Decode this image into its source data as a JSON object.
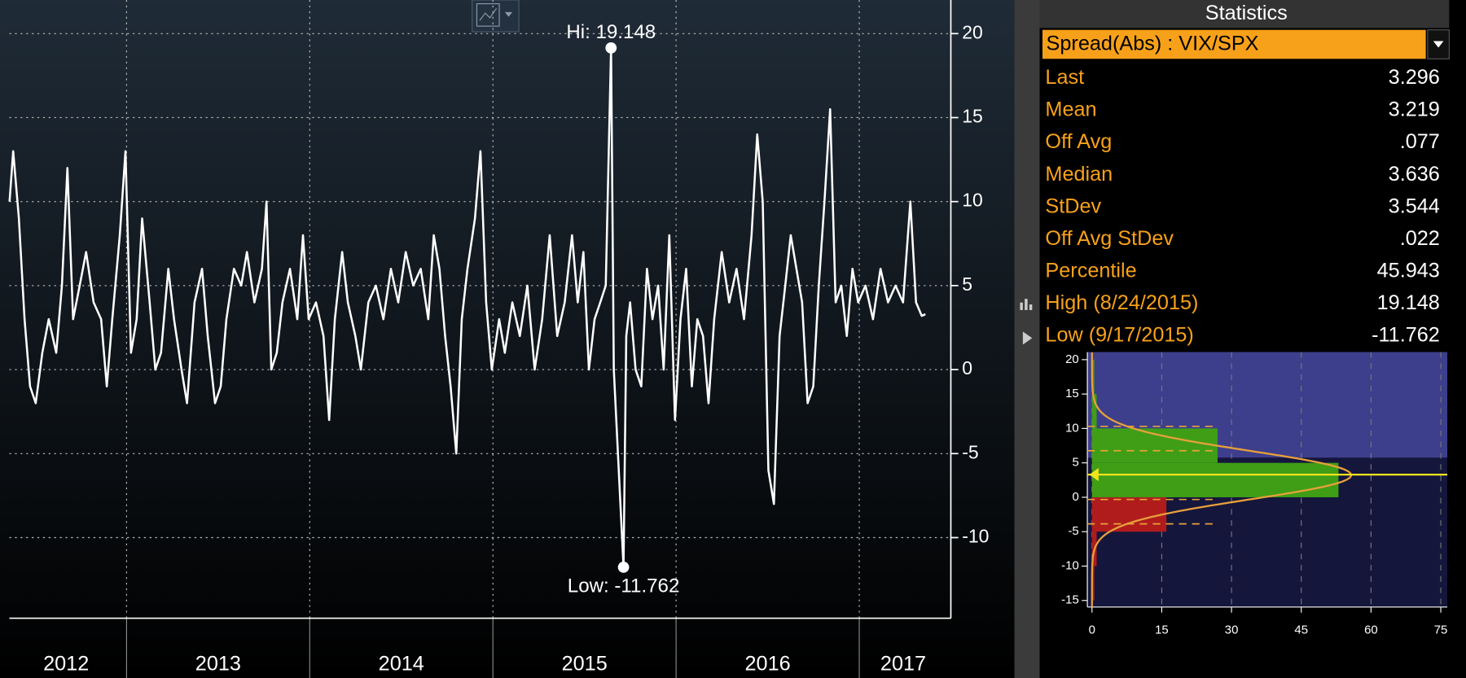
{
  "chart_data": [
    {
      "type": "line",
      "color": "#ffffff",
      "x": [
        2012.361,
        2012.381,
        2012.412,
        2012.443,
        2012.473,
        2012.504,
        2012.54,
        2012.575,
        2012.616,
        2012.647,
        2012.677,
        2012.708,
        2012.744,
        2012.779,
        2012.82,
        2012.861,
        2012.892,
        2012.922,
        2012.963,
        2012.994,
        2013.024,
        2013.055,
        2013.085,
        2013.126,
        2013.157,
        2013.188,
        2013.228,
        2013.259,
        2013.3,
        2013.33,
        2013.371,
        2013.412,
        2013.443,
        2013.483,
        2013.514,
        2013.545,
        2013.586,
        2013.626,
        2013.657,
        2013.698,
        2013.739,
        2013.764,
        2013.79,
        2013.82,
        2013.851,
        2013.892,
        2013.932,
        2013.963,
        2013.994,
        2014.034,
        2014.075,
        2014.106,
        2014.137,
        2014.177,
        2014.208,
        2014.249,
        2014.279,
        2014.32,
        2014.361,
        2014.402,
        2014.443,
        2014.483,
        2014.524,
        2014.565,
        2014.606,
        2014.647,
        2014.677,
        2014.708,
        2014.739,
        2014.769,
        2014.8,
        2014.83,
        2014.861,
        2014.902,
        2014.932,
        2014.963,
        2014.994,
        2015.034,
        2015.065,
        2015.106,
        2015.147,
        2015.188,
        2015.228,
        2015.269,
        2015.31,
        2015.351,
        2015.392,
        2015.432,
        2015.463,
        2015.494,
        2015.524,
        2015.555,
        2015.586,
        2015.616,
        2015.645,
        2015.66,
        2015.713,
        2015.728,
        2015.749,
        2015.779,
        2015.81,
        2015.841,
        2015.871,
        2015.902,
        2015.932,
        2015.963,
        2015.994,
        2016.024,
        2016.055,
        2016.086,
        2016.116,
        2016.147,
        2016.177,
        2016.208,
        2016.249,
        2016.29,
        2016.33,
        2016.371,
        2016.412,
        2016.443,
        2016.473,
        2016.504,
        2016.534,
        2016.565,
        2016.596,
        2016.626,
        2016.657,
        2016.688,
        2016.718,
        2016.749,
        2016.779,
        2016.81,
        2016.841,
        2016.871,
        2016.902,
        2016.932,
        2016.963,
        2016.994,
        2017.034,
        2017.075,
        2017.116,
        2017.157,
        2017.198,
        2017.239,
        2017.279,
        2017.31,
        2017.341,
        2017.361
      ],
      "values": [
        10,
        13,
        9,
        3,
        -1,
        -2,
        1,
        3,
        1,
        5,
        12,
        3,
        5,
        7,
        4,
        3,
        -1,
        3,
        8,
        13,
        1,
        3,
        9,
        4,
        0,
        1,
        6,
        3,
        0,
        -2,
        4,
        6,
        2,
        -2,
        -1,
        3,
        6,
        5,
        7,
        4,
        6,
        10,
        0,
        1,
        4,
        6,
        3,
        8,
        3,
        4,
        2,
        -3,
        3,
        7,
        4,
        2,
        0,
        4,
        5,
        3,
        6,
        4,
        7,
        5,
        6,
        3,
        8,
        6,
        2,
        -1,
        -5,
        3,
        6,
        9,
        13,
        4,
        0,
        3,
        1,
        4,
        2,
        5,
        0,
        3,
        8,
        2,
        4,
        8,
        4,
        7,
        0,
        3,
        4,
        5,
        19.148,
        0,
        -11.762,
        2,
        4,
        0,
        -1,
        6,
        3,
        5,
        0,
        8,
        -3,
        3,
        6,
        -1,
        3,
        2,
        -2,
        3,
        7,
        4,
        6,
        3,
        8,
        14,
        10,
        -6,
        -8,
        2,
        5,
        8,
        6,
        4,
        -2,
        -1,
        5,
        10,
        15.5,
        4,
        5,
        2,
        6,
        4,
        5,
        3,
        6,
        4,
        5,
        4,
        10,
        4,
        3.2,
        3.296
      ],
      "xlim": [
        2012.36,
        2017.5
      ],
      "ylim": [
        -14.8,
        22
      ],
      "yticks": [
        -10,
        -5,
        0,
        5,
        10,
        15,
        20
      ],
      "year_bounds": [
        2013,
        2014,
        2015,
        2016,
        2017
      ],
      "xticks": [
        {
          "value": 2012.67,
          "label": "2012"
        },
        {
          "value": 2013.5,
          "label": "2013"
        },
        {
          "value": 2014.5,
          "label": "2014"
        },
        {
          "value": 2015.5,
          "label": "2015"
        },
        {
          "value": 2016.5,
          "label": "2016"
        },
        {
          "value": 2017.24,
          "label": "2017"
        }
      ],
      "grid": true,
      "high": {
        "x": 2015.645,
        "value": 19.148,
        "label": "Hi: 19.148"
      },
      "low": {
        "x": 2015.713,
        "value": -11.762,
        "label": "Low: -11.762"
      }
    },
    {
      "type": "histogram",
      "orientation": "horizontal",
      "bins": [
        -15,
        -10,
        -5,
        0,
        5,
        10,
        15,
        20
      ],
      "counts": [
        0.5,
        1,
        16,
        53,
        27,
        1,
        0.5
      ],
      "colors": [
        "#b01c1c",
        "#b01c1c",
        "#b01c1c",
        "#3f9e16",
        "#3f9e16",
        "#3f9e16",
        "#3f9e16"
      ],
      "xlim": [
        -1,
        76.4
      ],
      "ylim": [
        -15.95,
        21.1
      ],
      "xticks": [
        0,
        15,
        30,
        45,
        60,
        75
      ],
      "yticks": [
        -15,
        -10,
        -5,
        0,
        5,
        10,
        15,
        20
      ],
      "normal": {
        "mean": 3.219,
        "stdev": 3.544,
        "color": "#e8a03a"
      },
      "last": 3.296,
      "last_color": "#f2e41c"
    }
  ],
  "statistics": {
    "title": "Statistics",
    "selector": "Spread(Abs) : VIX/SPX",
    "rows": [
      {
        "label": "Last",
        "value": "3.296"
      },
      {
        "label": "Mean",
        "value": "3.219"
      },
      {
        "label": "Off Avg",
        "value": ".077"
      },
      {
        "label": "Median",
        "value": "3.636"
      },
      {
        "label": "StDev",
        "value": "3.544"
      },
      {
        "label": "Off Avg StDev",
        "value": ".022"
      },
      {
        "label": "Percentile",
        "value": "45.943"
      },
      {
        "label": "High (8/24/2015)",
        "value": "19.148"
      },
      {
        "label": "Low (9/17/2015)",
        "value": "-11.762"
      }
    ]
  }
}
